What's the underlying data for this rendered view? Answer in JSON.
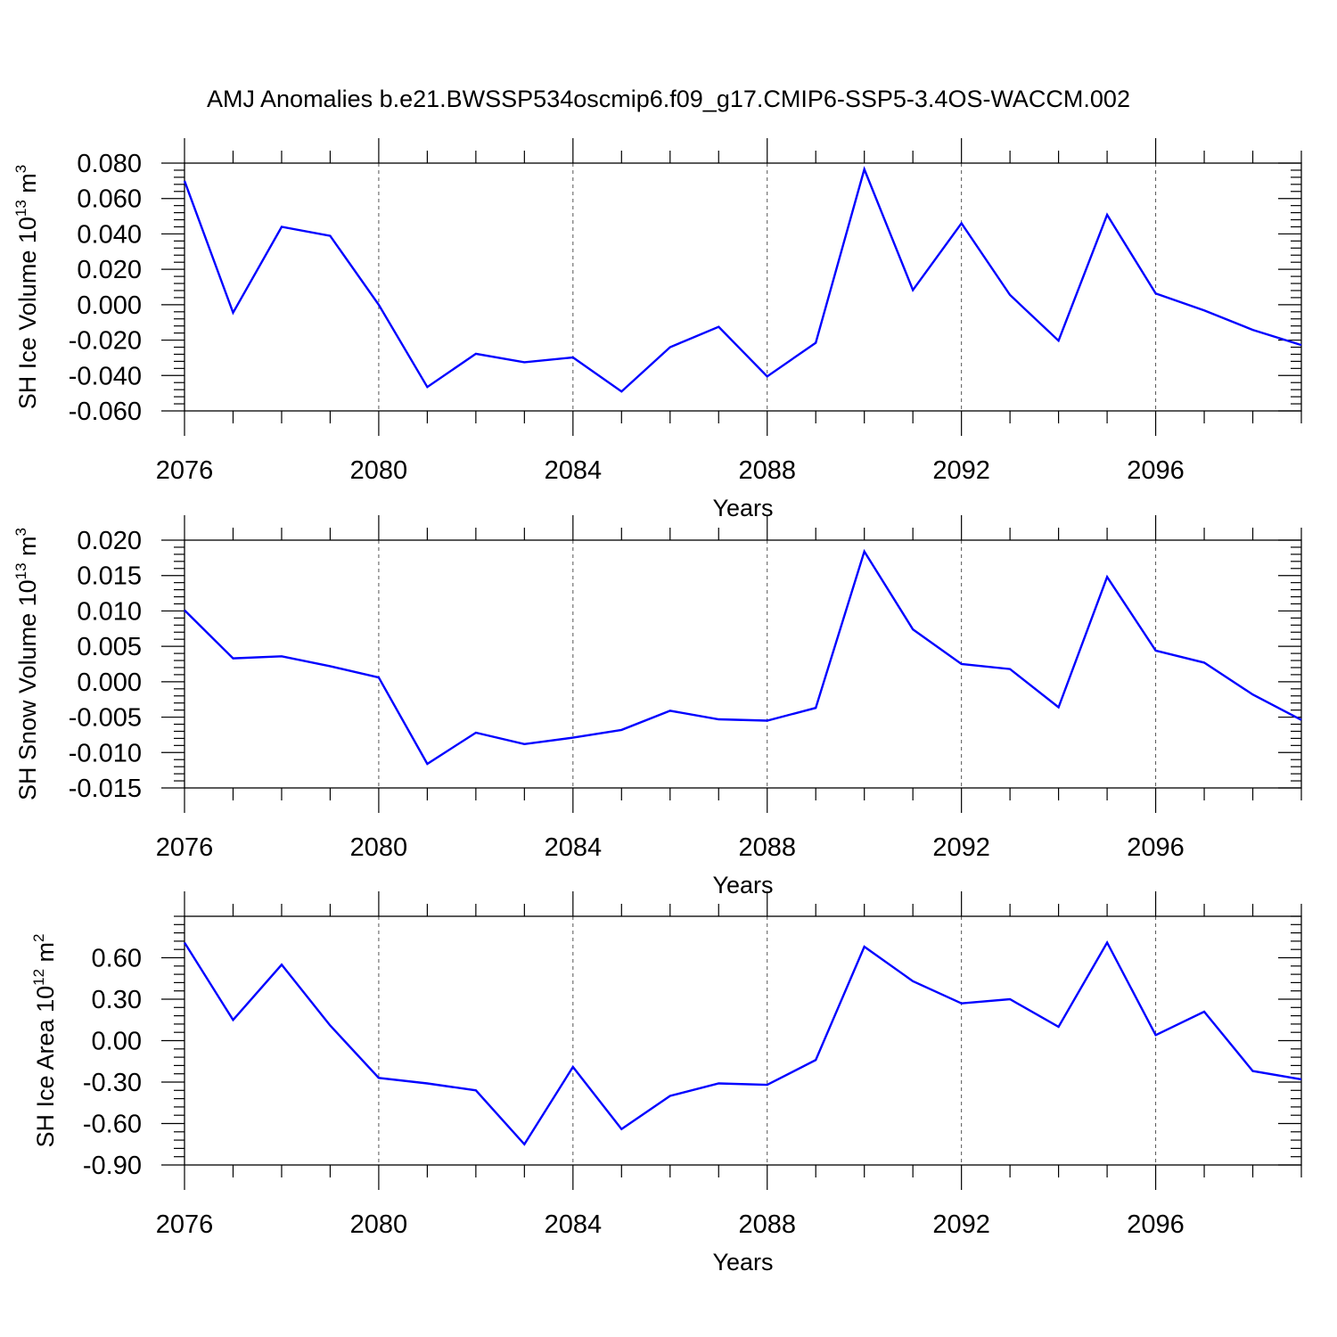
{
  "title": "AMJ Anomalies b.e21.BWSSP534oscmip6.f09_g17.CMIP6-SSP5-3.4OS-WACCM.002",
  "chart_data": [
    {
      "type": "line",
      "title": "AMJ Anomalies b.e21.BWSSP534oscmip6.f09_g17.CMIP6-SSP5-3.4OS-WACCM.002",
      "xlabel": "Years",
      "ylabel": {
        "prefix": "SH Ice Volume 10",
        "exponent": "13",
        "unit": " m",
        "unit_exponent": "3"
      },
      "xlim": [
        2076,
        2099
      ],
      "ylim": [
        -0.06,
        0.08
      ],
      "x_ticks": [
        2076,
        2080,
        2084,
        2088,
        2092,
        2096
      ],
      "x_tick_labels": [
        "2076",
        "2080",
        "2084",
        "2088",
        "2092",
        "2096"
      ],
      "y_ticks": [
        -0.06,
        -0.04,
        -0.02,
        0.0,
        0.02,
        0.04,
        0.06,
        0.08
      ],
      "y_tick_labels": [
        "-0.060",
        "-0.040",
        "-0.020",
        "0.000",
        "0.020",
        "0.040",
        "0.060",
        "0.080"
      ],
      "grid": "vertical dashed at major x ticks",
      "series": [
        {
          "color": "#0000ff",
          "x": [
            2076,
            2077,
            2078,
            2079,
            2080,
            2081,
            2082,
            2083,
            2084,
            2085,
            2086,
            2087,
            2088,
            2089,
            2090,
            2091,
            2092,
            2093,
            2094,
            2095,
            2096,
            2097,
            2098,
            2099
          ],
          "values": [
            0.07,
            -0.0045,
            0.044,
            0.0389,
            0.0,
            -0.0465,
            -0.0277,
            -0.0325,
            -0.0298,
            -0.049,
            -0.024,
            -0.0125,
            -0.0405,
            -0.0215,
            0.0765,
            0.0083,
            0.046,
            0.0055,
            -0.0203,
            0.0508,
            0.0063,
            -0.0032,
            -0.0142,
            -0.0228
          ]
        }
      ]
    },
    {
      "type": "line",
      "xlabel": "Years",
      "ylabel": {
        "prefix": "SH Snow Volume 10",
        "exponent": "13",
        "unit": " m",
        "unit_exponent": "3"
      },
      "xlim": [
        2076,
        2099
      ],
      "ylim": [
        -0.015,
        0.02
      ],
      "x_ticks": [
        2076,
        2080,
        2084,
        2088,
        2092,
        2096
      ],
      "x_tick_labels": [
        "2076",
        "2080",
        "2084",
        "2088",
        "2092",
        "2096"
      ],
      "y_ticks": [
        -0.015,
        -0.01,
        -0.005,
        0.0,
        0.005,
        0.01,
        0.015,
        0.02
      ],
      "y_tick_labels": [
        "-0.015",
        "-0.010",
        "-0.005",
        "0.000",
        "0.005",
        "0.010",
        "0.015",
        "0.020"
      ],
      "grid": "vertical dashed at major x ticks",
      "series": [
        {
          "color": "#0000ff",
          "x": [
            2076,
            2077,
            2078,
            2079,
            2080,
            2081,
            2082,
            2083,
            2084,
            2085,
            2086,
            2087,
            2088,
            2089,
            2090,
            2091,
            2092,
            2093,
            2094,
            2095,
            2096,
            2097,
            2098,
            2099
          ],
          "values": [
            0.0101,
            0.0033,
            0.0036,
            0.0022,
            0.0006,
            -0.0116,
            -0.0072,
            -0.0088,
            -0.0079,
            -0.0068,
            -0.0041,
            -0.0053,
            -0.0055,
            -0.0037,
            0.0184,
            0.0074,
            0.0025,
            0.0018,
            -0.0036,
            0.0148,
            0.0044,
            0.0027,
            -0.0018,
            -0.0054
          ]
        }
      ]
    },
    {
      "type": "line",
      "xlabel": "Years",
      "ylabel": {
        "prefix": "SH Ice Area 10",
        "exponent": "12",
        "unit": " m",
        "unit_exponent": "2"
      },
      "xlim": [
        2076,
        2099
      ],
      "ylim": [
        -0.9,
        0.9
      ],
      "x_ticks": [
        2076,
        2080,
        2084,
        2088,
        2092,
        2096
      ],
      "x_tick_labels": [
        "2076",
        "2080",
        "2084",
        "2088",
        "2092",
        "2096"
      ],
      "y_ticks": [
        -0.9,
        -0.6,
        -0.3,
        0.0,
        0.3,
        0.6
      ],
      "y_tick_labels": [
        "-0.90",
        "-0.60",
        "-0.30",
        "0.00",
        "0.30",
        "0.60"
      ],
      "grid": "vertical dashed at major x ticks",
      "series": [
        {
          "color": "#0000ff",
          "x": [
            2076,
            2077,
            2078,
            2079,
            2080,
            2081,
            2082,
            2083,
            2084,
            2085,
            2086,
            2087,
            2088,
            2089,
            2090,
            2091,
            2092,
            2093,
            2094,
            2095,
            2096,
            2097,
            2098,
            2099
          ],
          "values": [
            0.71,
            0.15,
            0.55,
            0.11,
            -0.27,
            -0.31,
            -0.36,
            -0.75,
            -0.19,
            -0.64,
            -0.4,
            -0.31,
            -0.32,
            -0.14,
            0.68,
            0.43,
            0.27,
            0.3,
            0.1,
            0.71,
            0.04,
            0.21,
            -0.22,
            -0.28
          ]
        }
      ]
    }
  ]
}
